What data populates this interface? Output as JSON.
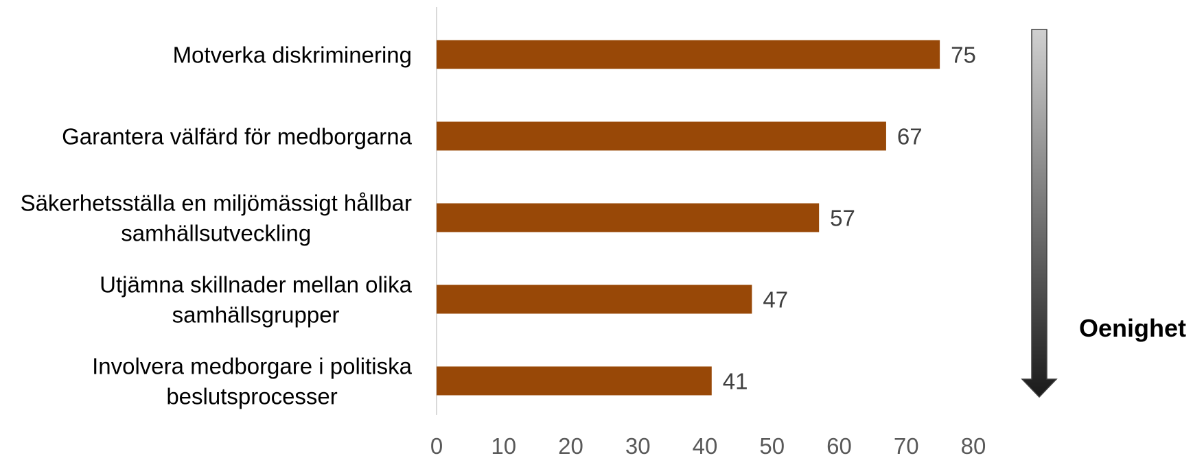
{
  "chart_data": {
    "type": "bar",
    "orientation": "horizontal",
    "categories": [
      [
        "Motverka diskriminering"
      ],
      [
        "Garantera välfärd för medborgarna"
      ],
      [
        "Säkerhetsställa en miljömässigt hållbar",
        "samhällsutveckling"
      ],
      [
        "Utjämna skillnader mellan olika",
        "samhällsgrupper"
      ],
      [
        "Involvera medborgare i politiska",
        "beslutsprocesser"
      ]
    ],
    "values": [
      75,
      67,
      57,
      47,
      41
    ],
    "xlim": [
      0,
      80
    ],
    "xticks": [
      0,
      10,
      20,
      30,
      40,
      50,
      60,
      70,
      80
    ],
    "bar_color": "#984807",
    "grid": false,
    "arrow": {
      "label": "Oenighet",
      "direction": "down",
      "gradient_from": "#d0d0d0",
      "gradient_to": "#1a1a1a"
    }
  }
}
